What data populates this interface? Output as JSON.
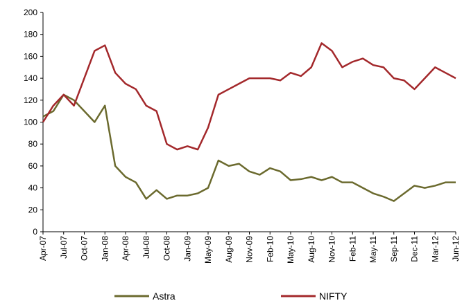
{
  "chart_data": {
    "type": "line",
    "categories": [
      "Apr-07",
      null,
      "Jul-07",
      null,
      "Oct-07",
      null,
      "Jan-08",
      null,
      "Apr-08",
      null,
      "Jul-08",
      null,
      "Oct-08",
      null,
      "Jan-09",
      null,
      "May-09",
      null,
      "Aug-09",
      null,
      "Nov-09",
      null,
      "Feb-10",
      null,
      "May-10",
      null,
      "Aug-10",
      null,
      "Nov-10",
      null,
      "Feb-11",
      null,
      "May-11",
      null,
      "Sep-11",
      null,
      "Dec-11",
      null,
      "Mar-12",
      null,
      "Jun-12"
    ],
    "series": [
      {
        "name": "Astra",
        "color": "#6b6a2e",
        "values": [
          105,
          110,
          125,
          120,
          110,
          100,
          115,
          60,
          50,
          45,
          30,
          38,
          30,
          33,
          33,
          35,
          40,
          65,
          60,
          62,
          55,
          52,
          58,
          55,
          47,
          48,
          50,
          47,
          50,
          45,
          45,
          40,
          35,
          32,
          28,
          35,
          42,
          40,
          42,
          45,
          45
        ]
      },
      {
        "name": "NIFTY",
        "color": "#a3282b",
        "values": [
          100,
          115,
          125,
          115,
          140,
          165,
          170,
          145,
          135,
          130,
          115,
          110,
          80,
          75,
          78,
          75,
          95,
          125,
          130,
          135,
          140,
          140,
          140,
          138,
          145,
          142,
          150,
          172,
          165,
          150,
          155,
          158,
          152,
          150,
          140,
          138,
          130,
          140,
          150,
          145,
          140
        ]
      }
    ],
    "ylim": [
      0,
      200
    ],
    "yticks": [
      0,
      20,
      40,
      60,
      80,
      100,
      120,
      140,
      160,
      180,
      200
    ],
    "grid": false
  }
}
